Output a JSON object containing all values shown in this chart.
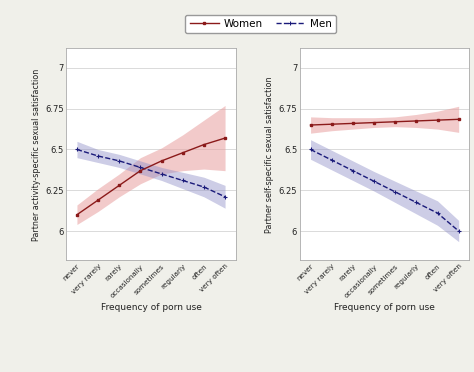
{
  "x_labels": [
    "never",
    "very rarely",
    "rarely",
    "occasionally",
    "sometimes",
    "regularly",
    "often",
    "very often"
  ],
  "x_vals": [
    0,
    1,
    2,
    3,
    4,
    5,
    6,
    7
  ],
  "left_women_y": [
    6.1,
    6.19,
    6.28,
    6.37,
    6.43,
    6.48,
    6.53,
    6.57
  ],
  "left_women_ci_low": [
    6.04,
    6.12,
    6.21,
    6.29,
    6.35,
    6.37,
    6.38,
    6.37
  ],
  "left_women_ci_high": [
    6.16,
    6.26,
    6.35,
    6.45,
    6.51,
    6.59,
    6.68,
    6.77
  ],
  "left_men_y": [
    6.5,
    6.46,
    6.43,
    6.39,
    6.35,
    6.31,
    6.27,
    6.21
  ],
  "left_men_ci_low": [
    6.45,
    6.42,
    6.39,
    6.35,
    6.31,
    6.26,
    6.21,
    6.14
  ],
  "left_men_ci_high": [
    6.55,
    6.5,
    6.47,
    6.43,
    6.39,
    6.36,
    6.33,
    6.28
  ],
  "right_women_y": [
    6.65,
    6.655,
    6.66,
    6.665,
    6.67,
    6.675,
    6.68,
    6.685
  ],
  "right_women_ci_low": [
    6.6,
    6.615,
    6.625,
    6.635,
    6.64,
    6.635,
    6.625,
    6.605
  ],
  "right_women_ci_high": [
    6.7,
    6.695,
    6.695,
    6.695,
    6.7,
    6.715,
    6.735,
    6.765
  ],
  "right_men_y": [
    6.5,
    6.435,
    6.37,
    6.305,
    6.24,
    6.175,
    6.11,
    6.0
  ],
  "right_men_ci_low": [
    6.44,
    6.375,
    6.31,
    6.245,
    6.175,
    6.105,
    6.035,
    5.935
  ],
  "right_men_ci_high": [
    6.56,
    6.495,
    6.43,
    6.365,
    6.305,
    6.245,
    6.185,
    6.065
  ],
  "women_color": "#8b1a1a",
  "men_color": "#1a1a7a",
  "women_fill": "#e8a0a0",
  "men_fill": "#9090c8",
  "left_ylabel": "Partner activity-specific sexual satisfaction",
  "right_ylabel": "Partner self-specific sexual satisfaction",
  "xlabel": "Frequency of porn use",
  "yticks": [
    6.0,
    6.25,
    6.5,
    6.75,
    7.0
  ],
  "ytick_labels": [
    "6",
    "6.25",
    "6.5",
    "6.75",
    "7"
  ],
  "ylim": [
    5.82,
    7.12
  ],
  "legend_women": "Women",
  "legend_men": "Men",
  "bg_color": "#f0f0ea",
  "plot_bg": "#ffffff"
}
